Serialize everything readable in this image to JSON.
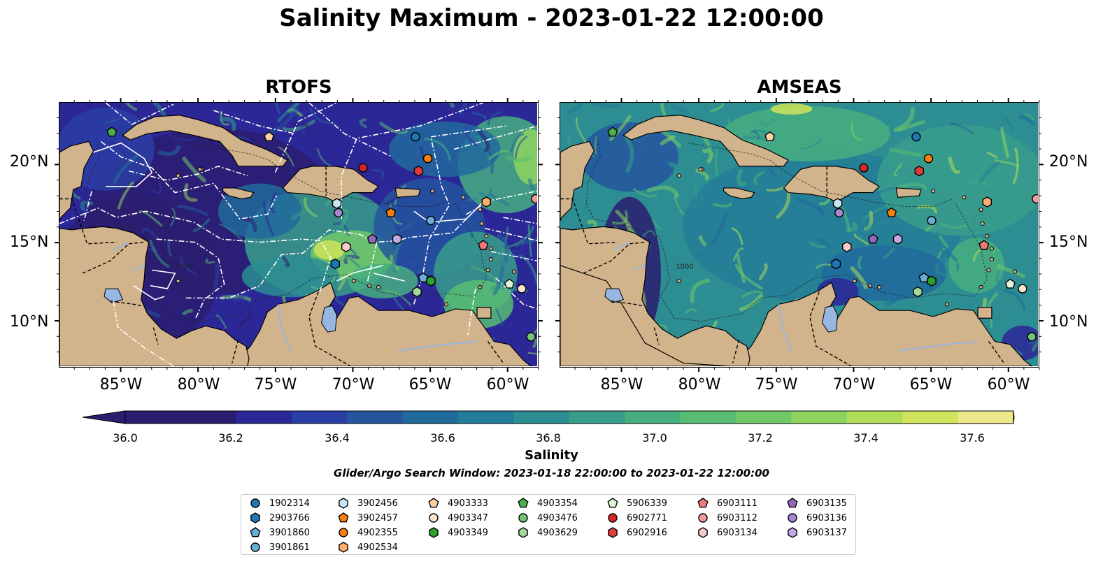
{
  "title": "Salinity Maximum - 2023-01-22 12:00:00",
  "panels": [
    {
      "title": "RTOFS",
      "side": "left"
    },
    {
      "title": "AMSEAS",
      "side": "right"
    }
  ],
  "map": {
    "lon_range": [
      -89,
      -58
    ],
    "lat_range": [
      7,
      24
    ],
    "lon_ticks": [
      "85°W",
      "80°W",
      "75°W",
      "70°W",
      "65°W",
      "60°W"
    ],
    "lat_ticks": [
      "20°N",
      "15°N",
      "10°N"
    ],
    "contour_label": "1000",
    "land_color": "#d2b48c",
    "lake_color": "#97b6e1"
  },
  "colorbar": {
    "label": "Salinity",
    "ticks": [
      "36.0",
      "36.2",
      "36.4",
      "36.6",
      "36.8",
      "37.0",
      "37.2",
      "37.4",
      "37.6"
    ],
    "min": 36.0,
    "max": 37.6,
    "colors": [
      "#2b1d70",
      "#2c2797",
      "#2a3ea3",
      "#25559f",
      "#216a9c",
      "#237c98",
      "#2c8d92",
      "#389d8b",
      "#47ae80",
      "#58bd73",
      "#71c868",
      "#8ed35e",
      "#b0dc58",
      "#d0e35c",
      "#ede88a"
    ]
  },
  "search_window": "Glider/Argo Search Window: 2023-01-18 22:00:00 to 2023-01-22 12:00:00",
  "legend": [
    {
      "id": "1902314",
      "marker": "circle",
      "color": "#1f77b4"
    },
    {
      "id": "2903766",
      "marker": "hexagon",
      "color": "#1f77b4"
    },
    {
      "id": "3901860",
      "marker": "pentagon",
      "color": "#6aaed6"
    },
    {
      "id": "3901861",
      "marker": "circle",
      "color": "#6aaed6"
    },
    {
      "id": "3902456",
      "marker": "hexagon",
      "color": "#c6e6f5"
    },
    {
      "id": "3902457",
      "marker": "pentagon",
      "color": "#f77f0e"
    },
    {
      "id": "4902355",
      "marker": "circle",
      "color": "#f77f0e"
    },
    {
      "id": "4902534",
      "marker": "hexagon",
      "color": "#fdae6b"
    },
    {
      "id": "4903333",
      "marker": "pentagon",
      "color": "#fdd0a2"
    },
    {
      "id": "4903347",
      "marker": "circle",
      "color": "#fde4cd"
    },
    {
      "id": "4903349",
      "marker": "hexagon",
      "color": "#2ca02c"
    },
    {
      "id": "4903354",
      "marker": "pentagon",
      "color": "#4caf4c"
    },
    {
      "id": "4903476",
      "marker": "circle",
      "color": "#74c476"
    },
    {
      "id": "4903629",
      "marker": "hexagon",
      "color": "#a1d99b"
    },
    {
      "id": "5906339",
      "marker": "pentagon",
      "color": "#dff5d8"
    },
    {
      "id": "6902771",
      "marker": "circle",
      "color": "#d62728"
    },
    {
      "id": "6902916",
      "marker": "hexagon",
      "color": "#e03a3a"
    },
    {
      "id": "6903111",
      "marker": "pentagon",
      "color": "#f07a7a"
    },
    {
      "id": "6903112",
      "marker": "circle",
      "color": "#f49a9a"
    },
    {
      "id": "6903134",
      "marker": "hexagon",
      "color": "#fbcaca"
    },
    {
      "id": "6903135",
      "marker": "pentagon",
      "color": "#9467bd"
    },
    {
      "id": "6903136",
      "marker": "circle",
      "color": "#a987d4"
    },
    {
      "id": "6903137",
      "marker": "hexagon",
      "color": "#c3a9e4"
    }
  ],
  "floats": [
    {
      "id": "6903135",
      "lon": -68.7,
      "lat": 15.2
    },
    {
      "id": "6903136",
      "lon": -70.9,
      "lat": 16.9
    },
    {
      "id": "6903137",
      "lon": -67.1,
      "lat": 15.2
    },
    {
      "id": "1902314",
      "lon": -65.9,
      "lat": 21.8
    },
    {
      "id": "4902355",
      "lon": -65.1,
      "lat": 20.4
    },
    {
      "id": "6902771",
      "lon": -69.3,
      "lat": 19.8
    },
    {
      "id": "6902916",
      "lon": -65.7,
      "lat": 19.6
    },
    {
      "id": "3902457",
      "lon": -67.5,
      "lat": 16.9
    },
    {
      "id": "3902456",
      "lon": -71.0,
      "lat": 17.5
    },
    {
      "id": "3901861",
      "lon": -64.9,
      "lat": 16.4
    },
    {
      "id": "4902534",
      "lon": -61.3,
      "lat": 17.6
    },
    {
      "id": "6903112",
      "lon": -58.1,
      "lat": 17.8
    },
    {
      "id": "6903111",
      "lon": -61.5,
      "lat": 14.8
    },
    {
      "id": "6903134",
      "lon": -70.4,
      "lat": 14.7
    },
    {
      "id": "2903766",
      "lon": -71.1,
      "lat": 13.6
    },
    {
      "id": "3901860",
      "lon": -65.4,
      "lat": 12.7
    },
    {
      "id": "4903349",
      "lon": -64.9,
      "lat": 12.5
    },
    {
      "id": "4903629",
      "lon": -65.8,
      "lat": 11.8
    },
    {
      "id": "5906339",
      "lon": -59.8,
      "lat": 12.3
    },
    {
      "id": "4903347",
      "lon": -59.0,
      "lat": 12.0
    },
    {
      "id": "4903354",
      "lon": -85.6,
      "lat": 22.1
    },
    {
      "id": "4903333",
      "lon": -75.4,
      "lat": 21.8
    },
    {
      "id": "4903476",
      "lon": -58.4,
      "lat": 8.9
    }
  ]
}
